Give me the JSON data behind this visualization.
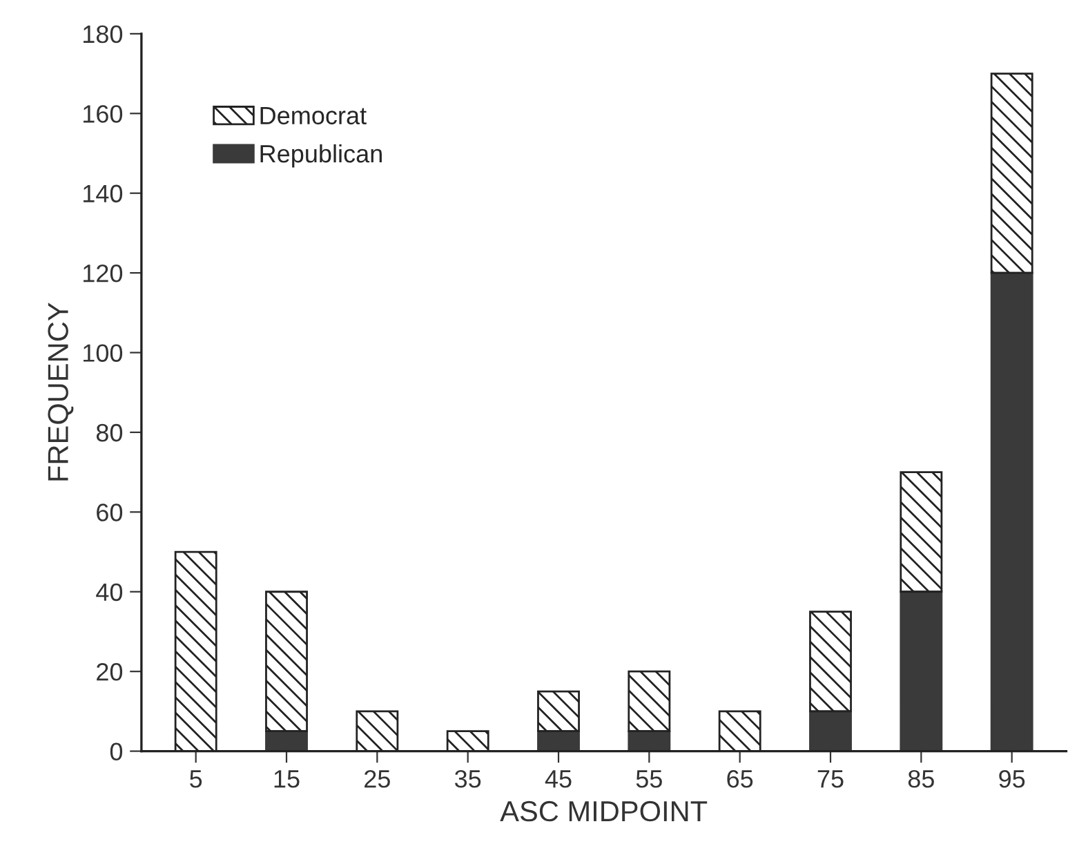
{
  "chart_data": {
    "type": "bar",
    "stacked": true,
    "xlabel": "ASC MIDPOINT",
    "ylabel": "FREQUENCY",
    "categories": [
      "5",
      "15",
      "25",
      "35",
      "45",
      "55",
      "65",
      "75",
      "85",
      "95"
    ],
    "series": [
      {
        "name": "Republican",
        "color": "#3a3a3a",
        "values": [
          0,
          5,
          0,
          0,
          5,
          5,
          0,
          10,
          40,
          120
        ]
      },
      {
        "name": "Democrat",
        "color": "#222222",
        "values": [
          50,
          35,
          10,
          5,
          10,
          15,
          10,
          25,
          30,
          50
        ]
      }
    ],
    "ylim": [
      0,
      180
    ],
    "yticks": [
      0,
      20,
      40,
      60,
      80,
      100,
      120,
      140,
      160,
      180
    ],
    "legend": "top left",
    "grid": false
  }
}
